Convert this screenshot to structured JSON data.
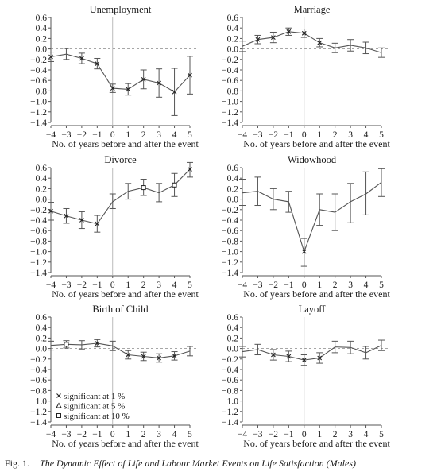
{
  "caption": {
    "number": "Fig. 1.",
    "title": "The Dynamic Effect of Life and Labour Market Events on Life Satisfaction (Males)"
  },
  "x_axis_label": "No. of years before and after the event",
  "legend": [
    {
      "marker": "x",
      "label": "significant at 1 %"
    },
    {
      "marker": "triangle",
      "label": "significant at 5 %"
    },
    {
      "marker": "square",
      "label": "significant at 10 %"
    }
  ],
  "chart_data": [
    {
      "type": "line",
      "title": "Unemployment",
      "x": [
        -4,
        -3,
        -2,
        -1,
        0,
        1,
        2,
        3,
        4,
        5
      ],
      "series": [
        {
          "values": [
            -0.15,
            -0.1,
            -0.18,
            -0.28,
            -0.75,
            -0.77,
            -0.58,
            -0.65,
            -0.82,
            -0.5
          ],
          "ci_low": [
            -0.24,
            -0.2,
            -0.28,
            -0.38,
            -0.83,
            -0.88,
            -0.76,
            -0.92,
            -1.27,
            -0.86
          ],
          "ci_high": [
            -0.06,
            0.01,
            -0.08,
            -0.18,
            -0.67,
            -0.66,
            -0.4,
            -0.38,
            -0.37,
            -0.14
          ],
          "markers": [
            "x",
            "",
            "x",
            "x",
            "x",
            "x",
            "x",
            "x",
            "x",
            "x"
          ]
        }
      ],
      "xlim": [
        -4,
        5
      ],
      "ylim": [
        -1.4,
        0.6
      ],
      "yticks": [
        0.6,
        0.4,
        0.2,
        0.0,
        -0.2,
        -0.4,
        -0.6,
        -0.8,
        -1.0,
        -1.2,
        -1.4
      ],
      "ytick_labels": [
        "0.6",
        "0.4",
        "0.2",
        "0.0",
        "−0.2",
        "−0.4",
        "−0.6",
        "−0.8",
        "−1.0",
        "−1.2",
        "−1.4"
      ],
      "xtick_labels": [
        "−4",
        "−3",
        "−2",
        "−1",
        "0",
        "1",
        "2",
        "3",
        "4",
        "5"
      ],
      "reference_lines": {
        "y_zero_dashed": true,
        "x_event_vertical": 0
      }
    },
    {
      "type": "line",
      "title": "Marriage",
      "x": [
        -4,
        -3,
        -2,
        -1,
        0,
        1,
        2,
        3,
        4,
        5
      ],
      "series": [
        {
          "values": [
            0.05,
            0.18,
            0.22,
            0.33,
            0.3,
            0.12,
            0.02,
            0.07,
            0.02,
            -0.07
          ],
          "ci_low": [
            -0.05,
            0.1,
            0.12,
            0.26,
            0.22,
            0.04,
            -0.07,
            -0.04,
            -0.09,
            -0.16
          ],
          "ci_high": [
            0.15,
            0.26,
            0.32,
            0.4,
            0.38,
            0.2,
            0.11,
            0.18,
            0.13,
            0.02
          ],
          "markers": [
            "",
            "x",
            "x",
            "x",
            "x",
            "x",
            "",
            "",
            "",
            ""
          ]
        }
      ],
      "xlim": [
        -4,
        5
      ],
      "ylim": [
        -1.4,
        0.6
      ],
      "yticks": [
        0.6,
        0.4,
        0.2,
        0.0,
        -0.2,
        -0.4,
        -0.6,
        -0.8,
        -1.0,
        -1.2,
        -1.4
      ],
      "ytick_labels": [
        "0.6",
        "0.4",
        "0.2",
        "0.0",
        "−0.2",
        "−0.4",
        "−0.6",
        "−0.8",
        "−1.0",
        "−1.2",
        "−1.4"
      ],
      "xtick_labels": [
        "−4",
        "−3",
        "−2",
        "−1",
        "0",
        "1",
        "2",
        "3",
        "4",
        "5"
      ],
      "reference_lines": {
        "y_zero_dashed": true,
        "x_event_vertical": 0
      }
    },
    {
      "type": "line",
      "title": "Divorce",
      "x": [
        -4,
        -3,
        -2,
        -1,
        0,
        1,
        2,
        3,
        4,
        5
      ],
      "series": [
        {
          "values": [
            -0.23,
            -0.32,
            -0.4,
            -0.47,
            -0.05,
            0.15,
            0.22,
            0.12,
            0.27,
            0.57
          ],
          "ci_low": [
            -0.4,
            -0.46,
            -0.56,
            -0.63,
            -0.18,
            0.0,
            0.07,
            -0.05,
            0.05,
            0.42
          ],
          "ci_high": [
            -0.06,
            -0.18,
            -0.24,
            -0.31,
            0.1,
            0.3,
            0.38,
            0.3,
            0.49,
            0.7
          ],
          "markers": [
            "x",
            "x",
            "x",
            "x",
            "",
            "",
            "square",
            "",
            "square",
            "x"
          ]
        }
      ],
      "xlim": [
        -4,
        5
      ],
      "ylim": [
        -1.4,
        0.6
      ],
      "yticks": [
        0.6,
        0.4,
        0.2,
        0.0,
        -0.2,
        -0.4,
        -0.6,
        -0.8,
        -1.0,
        -1.2,
        -1.4
      ],
      "ytick_labels": [
        "0.6",
        "0.4",
        "0.2",
        "0.0",
        "−0.2",
        "−0.4",
        "−0.6",
        "−0.8",
        "−1.0",
        "−1.2",
        "−1.4"
      ],
      "xtick_labels": [
        "−4",
        "−3",
        "−2",
        "−1",
        "0",
        "1",
        "2",
        "3",
        "4",
        "5"
      ],
      "reference_lines": {
        "y_zero_dashed": true,
        "x_event_vertical": 0
      }
    },
    {
      "type": "line",
      "title": "Widowhood",
      "x": [
        -4,
        -3,
        -2,
        -1,
        0,
        1,
        2,
        3,
        4,
        5
      ],
      "series": [
        {
          "values": [
            0.12,
            0.15,
            0.0,
            -0.05,
            -1.0,
            -0.2,
            -0.25,
            -0.05,
            0.1,
            0.32
          ],
          "ci_low": [
            -0.12,
            -0.12,
            -0.2,
            -0.25,
            -1.28,
            -0.5,
            -0.6,
            -0.45,
            -0.3,
            0.05
          ],
          "ci_high": [
            0.38,
            0.42,
            0.2,
            0.15,
            -0.75,
            0.1,
            0.1,
            0.3,
            0.52,
            0.58
          ],
          "markers": [
            "",
            "",
            "",
            "",
            "x",
            "",
            "",
            "",
            "",
            ""
          ]
        }
      ],
      "xlim": [
        -4,
        5
      ],
      "ylim": [
        -1.4,
        0.6
      ],
      "yticks": [
        0.6,
        0.4,
        0.2,
        0.0,
        -0.2,
        -0.4,
        -0.6,
        -0.8,
        -1.0,
        -1.2,
        -1.4
      ],
      "ytick_labels": [
        "0.6",
        "0.4",
        "0.2",
        "0.0",
        "−0.2",
        "−0.4",
        "−0.6",
        "−0.8",
        "−1.0",
        "−1.2",
        "−1.4"
      ],
      "xtick_labels": [
        "−4",
        "−3",
        "−2",
        "−1",
        "0",
        "1",
        "2",
        "3",
        "4",
        "5"
      ],
      "reference_lines": {
        "y_zero_dashed": true,
        "x_event_vertical": 0
      }
    },
    {
      "type": "line",
      "title": "Birth of Child",
      "x": [
        -4,
        -3,
        -2,
        -1,
        0,
        1,
        2,
        3,
        4,
        5
      ],
      "series": [
        {
          "values": [
            0.06,
            0.08,
            0.07,
            0.1,
            0.05,
            -0.12,
            -0.15,
            -0.18,
            -0.14,
            -0.05
          ],
          "ci_low": [
            -0.03,
            0.01,
            -0.01,
            0.03,
            -0.04,
            -0.2,
            -0.23,
            -0.26,
            -0.22,
            -0.14
          ],
          "ci_high": [
            0.14,
            0.15,
            0.15,
            0.17,
            0.14,
            -0.04,
            -0.07,
            -0.1,
            -0.06,
            0.04
          ],
          "markers": [
            "",
            "square",
            "",
            "x",
            "",
            "x",
            "x",
            "x",
            "x",
            ""
          ]
        }
      ],
      "xlim": [
        -4,
        5
      ],
      "ylim": [
        -1.4,
        0.6
      ],
      "yticks": [
        0.6,
        0.4,
        0.2,
        0.0,
        -0.2,
        -0.4,
        -0.6,
        -0.8,
        -1.0,
        -1.2,
        -1.4
      ],
      "ytick_labels": [
        "0.6",
        "0.4",
        "0.2",
        "0.0",
        "−0.2",
        "−0.4",
        "−0.6",
        "−0.8",
        "−1.0",
        "−1.2",
        "−1.4"
      ],
      "xtick_labels": [
        "−4",
        "−3",
        "−2",
        "−1",
        "0",
        "1",
        "2",
        "3",
        "4",
        "5"
      ],
      "reference_lines": {
        "y_zero_dashed": true,
        "x_event_vertical": 0
      },
      "has_legend": true
    },
    {
      "type": "line",
      "title": "Layoff",
      "x": [
        -4,
        -3,
        -2,
        -1,
        0,
        1,
        2,
        3,
        4,
        5
      ],
      "series": [
        {
          "values": [
            -0.06,
            -0.02,
            -0.12,
            -0.15,
            -0.22,
            -0.18,
            0.03,
            0.02,
            -0.08,
            0.06
          ],
          "ci_low": [
            -0.16,
            -0.12,
            -0.22,
            -0.25,
            -0.32,
            -0.28,
            -0.08,
            -0.1,
            -0.2,
            -0.04
          ],
          "ci_high": [
            0.04,
            0.08,
            -0.02,
            -0.05,
            -0.12,
            -0.08,
            0.14,
            0.14,
            0.04,
            0.16
          ],
          "markers": [
            "",
            "",
            "x",
            "x",
            "x",
            "x",
            "",
            "",
            "",
            ""
          ]
        }
      ],
      "xlim": [
        -4,
        5
      ],
      "ylim": [
        -1.4,
        0.6
      ],
      "yticks": [
        0.6,
        0.4,
        0.2,
        0.0,
        -0.2,
        -0.4,
        -0.6,
        -0.8,
        -1.0,
        -1.2,
        -1.4
      ],
      "ytick_labels": [
        "0.6",
        "0.4",
        "0.2",
        "0.0",
        "−0.2",
        "−0.4",
        "−0.6",
        "−0.8",
        "−1.0",
        "−1.2",
        "−1.4"
      ],
      "xtick_labels": [
        "−4",
        "−3",
        "−2",
        "−1",
        "0",
        "1",
        "2",
        "3",
        "4",
        "5"
      ],
      "reference_lines": {
        "y_zero_dashed": true,
        "x_event_vertical": 0
      }
    }
  ]
}
